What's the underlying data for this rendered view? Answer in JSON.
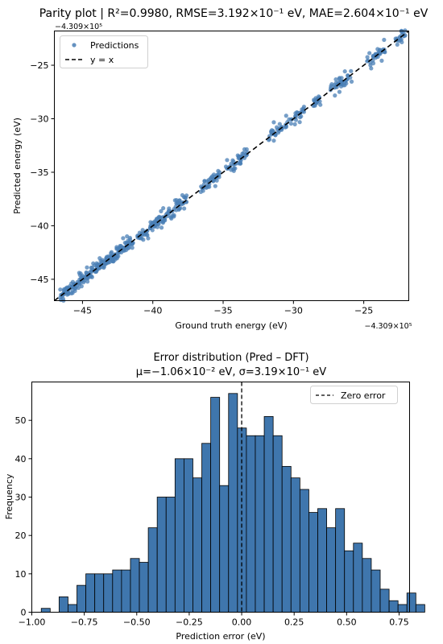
{
  "chart_data": [
    {
      "type": "scatter",
      "title": "Parity plot  |  R²=0.9980, RMSE=3.192×10⁻¹ eV, MAE=2.604×10⁻¹ eV",
      "xlabel": "Ground truth energy (eV)",
      "ylabel": "Predicted energy (eV)",
      "x_offset_label": "−4.309×10⁵",
      "y_offset_label": "−4.309×10⁵",
      "xlim": [
        -47.0,
        -21.8
      ],
      "ylim": [
        -47.0,
        -21.8
      ],
      "xticks": [
        -45,
        -40,
        -35,
        -30,
        -25
      ],
      "yticks": [
        -45,
        -40,
        -35,
        -30,
        -25
      ],
      "xtick_labels": [
        "−45",
        "−40",
        "−35",
        "−30",
        "−25"
      ],
      "ytick_labels": [
        "−45",
        "−40",
        "−35",
        "−30",
        "−25"
      ],
      "legend_position": "upper-left",
      "series": [
        {
          "name": "Predictions",
          "color": "#4a7fb5",
          "clusters": [
            {
              "x_from": -46.6,
              "x_to": -41.4,
              "count": 220
            },
            {
              "x_from": -41.2,
              "x_to": -37.6,
              "count": 110
            },
            {
              "x_from": -36.6,
              "x_to": -35.2,
              "count": 40
            },
            {
              "x_from": -34.8,
              "x_to": -33.2,
              "count": 40
            },
            {
              "x_from": -31.8,
              "x_to": -30.8,
              "count": 30
            },
            {
              "x_from": -30.6,
              "x_to": -29.2,
              "count": 30
            },
            {
              "x_from": -28.6,
              "x_to": -28.0,
              "count": 20
            },
            {
              "x_from": -27.4,
              "x_to": -25.8,
              "count": 40
            },
            {
              "x_from": -24.8,
              "x_to": -23.4,
              "count": 35
            },
            {
              "x_from": -22.8,
              "x_to": -22.0,
              "count": 20
            }
          ],
          "rmse": 0.3192
        },
        {
          "name": "y = x",
          "color": "#000000",
          "style": "dashed"
        }
      ]
    },
    {
      "type": "bar",
      "subtype": "histogram",
      "title_line1": "Error distribution (Pred – DFT)",
      "title_line2": "μ=−1.06×10⁻²  eV, σ=3.19×10⁻¹ eV",
      "xlabel": "Prediction error (eV)",
      "ylabel": "Frequency",
      "xlim": [
        -1.0,
        0.8
      ],
      "ylim": [
        0,
        60
      ],
      "xticks": [
        -1.0,
        -0.75,
        -0.5,
        -0.25,
        0.0,
        0.25,
        0.5,
        0.75
      ],
      "xtick_labels": [
        "−1.00",
        "−0.75",
        "−0.50",
        "−0.25",
        "0.00",
        "0.25",
        "0.50",
        "0.75"
      ],
      "yticks": [
        0,
        10,
        20,
        30,
        40,
        50
      ],
      "ytick_labels": [
        "0",
        "10",
        "20",
        "30",
        "40",
        "50"
      ],
      "bin_start": -0.955,
      "bin_width": 0.0425,
      "values": [
        1,
        0,
        4,
        2,
        7,
        10,
        10,
        10,
        11,
        11,
        14,
        13,
        22,
        30,
        30,
        40,
        40,
        35,
        44,
        56,
        33,
        57,
        48,
        46,
        46,
        51,
        46,
        38,
        35,
        32,
        26,
        27,
        22,
        27,
        16,
        18,
        14,
        11,
        6,
        3,
        2,
        5,
        2
      ],
      "bar_color": "#3f76ad",
      "legend_position": "upper-right",
      "legend_label": "Zero error",
      "reference_line_x": 0.0
    }
  ]
}
